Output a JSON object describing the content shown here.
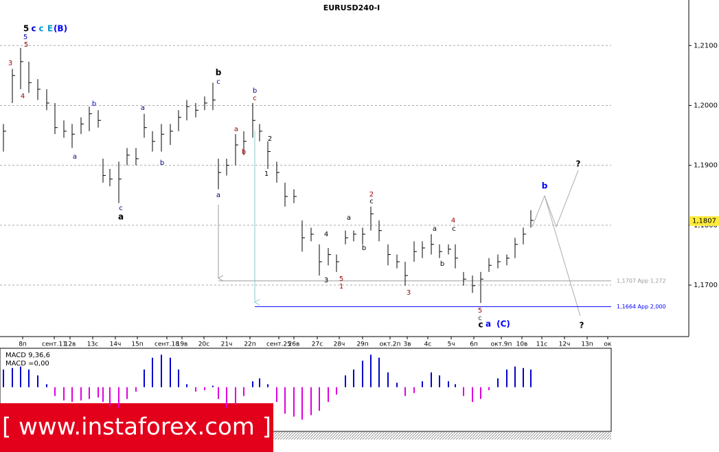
{
  "chart_data": {
    "type": "ohlc",
    "title": "EURUSD240-I",
    "high": [
      1.1969,
      1.2061,
      1.2096,
      1.2073,
      1.2044,
      1.2027,
      1.2004,
      1.1975,
      1.1969,
      1.198,
      1.1998,
      1.1992,
      1.1911,
      1.1894,
      1.1906,
      1.1929,
      1.1929,
      1.1986,
      1.1957,
      1.1969,
      1.1969,
      1.1992,
      1.2009,
      1.2004,
      1.2015,
      1.2038,
      1.1911,
      1.1911,
      1.1952,
      1.1957,
      1.2004,
      1.1969,
      1.194,
      1.1906,
      1.1871,
      1.186,
      1.1808,
      1.1796,
      1.1768,
      1.1762,
      1.1751,
      1.1791,
      1.1791,
      1.1796,
      1.1831,
      1.1808,
      1.1768,
      1.1751,
      1.1739,
      1.1773,
      1.1773,
      1.1785,
      1.1768,
      1.1768,
      1.1768,
      1.1722,
      1.1716,
      1.1722,
      1.1745,
      1.1751,
      1.1751,
      1.1779,
      1.1796,
      1.1825
    ],
    "low": [
      1.1923,
      1.2004,
      1.2027,
      1.2021,
      1.2009,
      1.1992,
      1.1952,
      1.1946,
      1.1929,
      1.1952,
      1.1957,
      1.1963,
      1.1871,
      1.1865,
      1.1837,
      1.19,
      1.19,
      1.1946,
      1.1923,
      1.1923,
      1.1934,
      1.1957,
      1.1975,
      1.198,
      1.1992,
      1.1992,
      1.186,
      1.1883,
      1.19,
      1.1917,
      1.1946,
      1.194,
      1.1894,
      1.1871,
      1.1831,
      1.1837,
      1.1756,
      1.1773,
      1.1716,
      1.1733,
      1.1722,
      1.1768,
      1.1773,
      1.1768,
      1.1791,
      1.1773,
      1.1733,
      1.1728,
      1.1699,
      1.1739,
      1.1745,
      1.1751,
      1.1745,
      1.1751,
      1.1728,
      1.1699,
      1.1687,
      1.167,
      1.1722,
      1.1728,
      1.1733,
      1.1745,
      1.1768,
      1.1796
    ],
    "close": [
      1.1957,
      1.205,
      1.2073,
      1.2038,
      1.2027,
      1.2004,
      1.1963,
      1.1957,
      1.1952,
      1.1969,
      1.1986,
      1.1975,
      1.1883,
      1.1877,
      1.1877,
      1.1917,
      1.1911,
      1.1963,
      1.194,
      1.1952,
      1.1957,
      1.198,
      1.1998,
      1.1992,
      1.2004,
      1.2009,
      1.1888,
      1.19,
      1.1934,
      1.194,
      1.1975,
      1.1957,
      1.1923,
      1.1888,
      1.1848,
      1.1848,
      1.1779,
      1.1785,
      1.1739,
      1.1751,
      1.1739,
      1.1779,
      1.1785,
      1.1785,
      1.1819,
      1.1791,
      1.1751,
      1.1739,
      1.1716,
      1.1756,
      1.1762,
      1.1768,
      1.1756,
      1.176,
      1.1745,
      1.171,
      1.1699,
      1.171,
      1.1733,
      1.1739,
      1.1745,
      1.1768,
      1.1785,
      1.1808
    ],
    "color": "#000000",
    "ylim": [
      1.1614,
      1.2176
    ],
    "yticks": [
      {
        "value": 1.21,
        "label": "1,2100"
      },
      {
        "value": 1.2,
        "label": "1,2000"
      },
      {
        "value": 1.19,
        "label": "1,1900"
      },
      {
        "value": 1.18,
        "label": "1,1800"
      },
      {
        "value": 1.17,
        "label": "1,1700"
      }
    ],
    "grid": true,
    "current_price": {
      "value": 1.1807,
      "label": "1,1807"
    },
    "levels": [
      {
        "value": 1.1707,
        "label": "1,1707 App 1,272",
        "color": "#9a9a9a"
      },
      {
        "value": 1.1664,
        "label": "1,1664 App 2,000",
        "color": "#0000ff"
      }
    ],
    "xtick_labels": [
      "8п",
      "сент.11",
      "12в",
      "13с",
      "14ч",
      "15п",
      "сент.18",
      "19в",
      "20с",
      "21ч",
      "22п",
      "сент.25",
      "26в",
      "27с",
      "28ч",
      "29п",
      "окт.2п",
      "3в",
      "4с",
      "5ч",
      "6п",
      "окт.9п",
      "10в",
      "11с",
      "12ч",
      "13п",
      "ок"
    ],
    "annotations": [
      {
        "text": "5",
        "color": "#000000"
      },
      {
        "text": "c",
        "color": "#0000cc"
      },
      {
        "text": "c",
        "color": "#0099cc"
      },
      {
        "text": "E",
        "color": "#0099cc"
      },
      {
        "text": "(B)",
        "color": "#0000ff"
      },
      {
        "text": "5",
        "color": "#0000aa"
      },
      {
        "text": "5",
        "color": "#990000"
      },
      {
        "text": "3",
        "color": "#990000"
      },
      {
        "text": "4",
        "color": "#990000"
      },
      {
        "text": "b",
        "color": "#0000cc"
      },
      {
        "text": "a",
        "color": "#000080"
      },
      {
        "text": "a",
        "color": "#000080"
      },
      {
        "text": "b",
        "color": "#000080"
      },
      {
        "text": "c",
        "color": "#000080"
      },
      {
        "text": "a",
        "color": "#000000"
      },
      {
        "text": "b",
        "color": "#000000"
      },
      {
        "text": "c",
        "color": "#000080"
      },
      {
        "text": "a",
        "color": "#000080"
      },
      {
        "text": "b",
        "color": "#000080"
      },
      {
        "text": "c",
        "color": "#990000"
      },
      {
        "text": "a",
        "color": "#990000"
      },
      {
        "text": "b",
        "color": "#990000"
      },
      {
        "text": "2",
        "color": "#000000"
      },
      {
        "text": "1",
        "color": "#000000"
      },
      {
        "text": "4",
        "color": "#000000"
      },
      {
        "text": "3",
        "color": "#000000"
      },
      {
        "text": "5",
        "color": "#990000"
      },
      {
        "text": "1",
        "color": "#990000"
      },
      {
        "text": "a",
        "color": "#000000"
      },
      {
        "text": "b",
        "color": "#000000"
      },
      {
        "text": "2",
        "color": "#990000"
      },
      {
        "text": "c",
        "color": "#000000"
      },
      {
        "text": "3",
        "color": "#990000"
      },
      {
        "text": "a",
        "color": "#000000"
      },
      {
        "text": "b",
        "color": "#000000"
      },
      {
        "text": "4",
        "color": "#990000"
      },
      {
        "text": "c",
        "color": "#000000"
      },
      {
        "text": "5",
        "color": "#990000"
      },
      {
        "text": "c",
        "color": "#333333"
      },
      {
        "text": "c",
        "color": "#000000"
      },
      {
        "text": "a",
        "color": "#0000ff"
      },
      {
        "text": "(C)",
        "color": "#0000ff"
      },
      {
        "text": "b",
        "color": "#0000ff"
      },
      {
        "text": "?",
        "color": "#000000"
      },
      {
        "text": "?",
        "color": "#000000"
      }
    ],
    "macd": {
      "name": "MACD 9,36,6",
      "reading": "MACD =0,00",
      "positive_color": "#0000cc",
      "negative_color": "#dd00dd",
      "ylim": [
        -0.003,
        0.0025
      ],
      "values": [
        0.0012,
        0.0013,
        0.0014,
        0.0012,
        0.0008,
        0.0002,
        -0.0006,
        -0.0009,
        -0.001,
        -0.0009,
        -0.0008,
        -0.0007,
        -0.001,
        -0.0013,
        -0.0014,
        -0.0008,
        -0.0003,
        0.0012,
        0.002,
        0.0022,
        0.002,
        0.0012,
        0.0002,
        -0.0003,
        -0.0002,
        0.0001,
        -0.0008,
        -0.0014,
        -0.0012,
        -0.0006,
        0.0004,
        0.0006,
        0.0002,
        -0.001,
        -0.0018,
        -0.002,
        -0.0022,
        -0.0019,
        -0.0016,
        -0.001,
        -0.0005,
        0.0008,
        0.0012,
        0.0018,
        0.0022,
        0.002,
        0.001,
        0.0003,
        -0.0006,
        -0.0004,
        0.0004,
        0.001,
        0.0008,
        0.0004,
        0.0002,
        -0.0006,
        -0.001,
        -0.0008,
        -0.0002,
        0.0006,
        0.0012,
        0.0014,
        0.0013,
        0.0012
      ]
    },
    "watermark": "[ www.instaforex.com ]"
  }
}
